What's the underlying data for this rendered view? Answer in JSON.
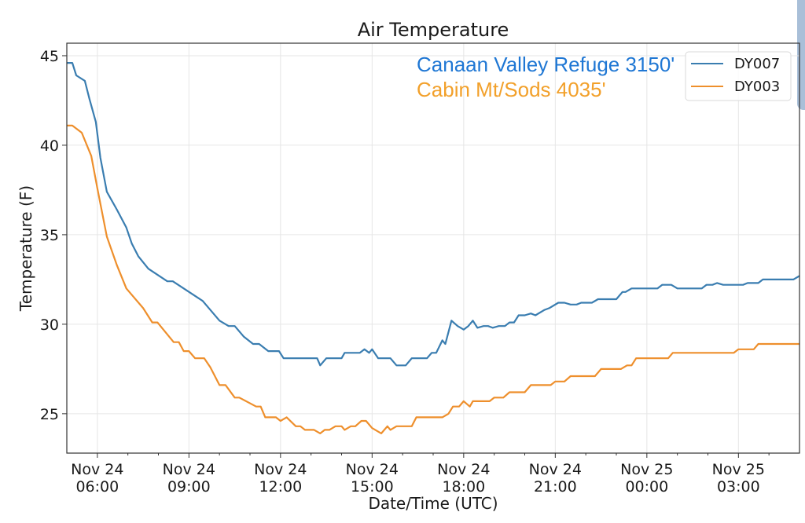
{
  "colors": {
    "series_DY007": "#3a7db0",
    "series_DY003": "#ee8f2c",
    "annotation_canaan": "#1f77d4",
    "annotation_cabin": "#f2a02a",
    "grid": "#e6e6e6",
    "axis": "#333333"
  },
  "chart_data": {
    "type": "line",
    "title": "Air Temperature",
    "xlabel": "Date/Time (UTC)",
    "ylabel": "Temperature (F)",
    "x_unit": "hours since Nov 24 00:00 UTC",
    "xlim": [
      5.0,
      29.0
    ],
    "ylim": [
      22.8,
      45.7
    ],
    "grid": true,
    "legend_position": "top-right",
    "y_ticks": [
      {
        "value": 25,
        "label": "25"
      },
      {
        "value": 30,
        "label": "30"
      },
      {
        "value": 35,
        "label": "35"
      },
      {
        "value": 40,
        "label": "40"
      },
      {
        "value": 45,
        "label": "45"
      }
    ],
    "x_ticks": [
      {
        "value": 6,
        "line1": "Nov 24",
        "line2": "06:00"
      },
      {
        "value": 9,
        "line1": "Nov 24",
        "line2": "09:00"
      },
      {
        "value": 12,
        "line1": "Nov 24",
        "line2": "12:00"
      },
      {
        "value": 15,
        "line1": "Nov 24",
        "line2": "15:00"
      },
      {
        "value": 18,
        "line1": "Nov 24",
        "line2": "18:00"
      },
      {
        "value": 21,
        "line1": "Nov 24",
        "line2": "21:00"
      },
      {
        "value": 24,
        "line1": "Nov 25",
        "line2": "00:00"
      },
      {
        "value": 27,
        "line1": "Nov 25",
        "line2": "03:00"
      }
    ],
    "x_minor_ticks": [
      7,
      8,
      10,
      11,
      13,
      14,
      16,
      17,
      19,
      20,
      22,
      23,
      25,
      26,
      28
    ],
    "annotations": [
      {
        "text": "Canaan Valley Refuge 3150'",
        "series": "DY007"
      },
      {
        "text": "Cabin Mt/Sods 4035'",
        "series": "DY003"
      }
    ],
    "series": [
      {
        "name": "DY007",
        "x": [
          5.0,
          5.18,
          5.31,
          5.59,
          5.74,
          5.95,
          6.1,
          6.31,
          6.64,
          6.95,
          7.13,
          7.34,
          7.67,
          8.29,
          8.47,
          9.45,
          10.0,
          10.3,
          10.5,
          10.8,
          11.1,
          11.3,
          11.6,
          11.95,
          12.1,
          13.2,
          13.3,
          13.5,
          14.0,
          14.1,
          14.6,
          14.75,
          14.9,
          15.0,
          15.2,
          15.6,
          15.8,
          16.1,
          16.3,
          16.8,
          16.95,
          17.1,
          17.3,
          17.4,
          17.6,
          17.8,
          18.0,
          18.15,
          18.3,
          18.45,
          18.65,
          18.8,
          18.95,
          19.15,
          19.35,
          19.5,
          19.65,
          19.8,
          20.0,
          20.2,
          20.35,
          20.65,
          20.8,
          21.1,
          21.3,
          21.5,
          21.7,
          21.85,
          22.2,
          22.4,
          23.0,
          23.2,
          23.3,
          23.5,
          24.35,
          24.5,
          24.8,
          25.0,
          25.8,
          25.95,
          26.15,
          26.3,
          26.5,
          27.15,
          27.3,
          27.65,
          27.8,
          28.8,
          29.0
        ],
        "values": [
          44.6,
          44.6,
          43.9,
          43.6,
          42.6,
          41.3,
          39.3,
          37.4,
          36.4,
          35.4,
          34.5,
          33.8,
          33.1,
          32.4,
          32.4,
          31.3,
          30.2,
          29.9,
          29.9,
          29.3,
          28.9,
          28.9,
          28.5,
          28.5,
          28.1,
          28.1,
          27.7,
          28.1,
          28.1,
          28.4,
          28.4,
          28.6,
          28.4,
          28.6,
          28.1,
          28.1,
          27.7,
          27.7,
          28.1,
          28.1,
          28.4,
          28.4,
          29.1,
          28.9,
          30.2,
          29.9,
          29.7,
          29.9,
          30.2,
          29.8,
          29.9,
          29.9,
          29.8,
          29.9,
          29.9,
          30.1,
          30.1,
          30.5,
          30.5,
          30.6,
          30.5,
          30.8,
          30.9,
          31.2,
          31.2,
          31.1,
          31.1,
          31.2,
          31.2,
          31.4,
          31.4,
          31.8,
          31.8,
          32.0,
          32.0,
          32.2,
          32.2,
          32.0,
          32.0,
          32.2,
          32.2,
          32.3,
          32.2,
          32.2,
          32.3,
          32.3,
          32.5,
          32.5,
          32.7
        ]
      },
      {
        "name": "DY003",
        "x": [
          5.0,
          5.18,
          5.49,
          5.8,
          6.0,
          6.31,
          6.64,
          6.95,
          7.5,
          7.8,
          7.97,
          8.5,
          8.67,
          8.83,
          9.0,
          9.2,
          9.5,
          9.7,
          10.0,
          10.2,
          10.5,
          10.65,
          11.2,
          11.35,
          11.5,
          11.85,
          12.0,
          12.2,
          12.5,
          12.65,
          12.8,
          13.1,
          13.3,
          13.45,
          13.6,
          13.8,
          14.0,
          14.1,
          14.3,
          14.45,
          14.65,
          14.8,
          15.0,
          15.3,
          15.5,
          15.6,
          15.8,
          16.3,
          16.45,
          17.3,
          17.5,
          17.65,
          17.85,
          18.0,
          18.2,
          18.3,
          18.85,
          19.0,
          19.3,
          19.5,
          20.0,
          20.2,
          20.85,
          21.0,
          21.3,
          21.5,
          22.3,
          22.5,
          23.15,
          23.35,
          23.5,
          23.65,
          24.7,
          24.85,
          26.85,
          27.0,
          27.5,
          27.65,
          29.0
        ],
        "values": [
          41.1,
          41.1,
          40.7,
          39.4,
          37.6,
          34.9,
          33.3,
          32.0,
          30.9,
          30.1,
          30.1,
          29.0,
          29.0,
          28.5,
          28.5,
          28.1,
          28.1,
          27.6,
          26.6,
          26.6,
          25.9,
          25.9,
          25.4,
          25.4,
          24.8,
          24.8,
          24.6,
          24.8,
          24.3,
          24.3,
          24.1,
          24.1,
          23.9,
          24.1,
          24.1,
          24.3,
          24.3,
          24.1,
          24.3,
          24.3,
          24.6,
          24.6,
          24.2,
          23.9,
          24.3,
          24.1,
          24.3,
          24.3,
          24.8,
          24.8,
          25.0,
          25.4,
          25.4,
          25.7,
          25.4,
          25.7,
          25.7,
          25.9,
          25.9,
          26.2,
          26.2,
          26.6,
          26.6,
          26.8,
          26.8,
          27.1,
          27.1,
          27.5,
          27.5,
          27.7,
          27.7,
          28.1,
          28.1,
          28.4,
          28.4,
          28.6,
          28.6,
          28.9,
          28.9
        ]
      }
    ]
  }
}
